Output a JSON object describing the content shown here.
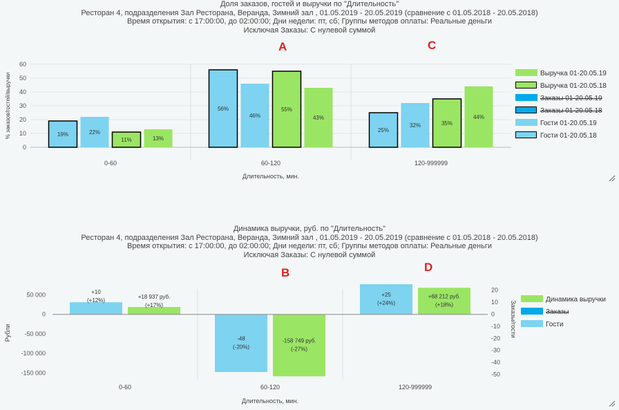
{
  "charts": [
    {
      "title_lines": [
        "Доля заказов, гостей и выручки по \"Длительность\"",
        "Ресторан 4, подразделения Зал Ресторана, Веранда, Зимний зал  , 01.05.2019 - 20.05.2019 (сравнение с 01.05.2018 - 20.05.2018)",
        "Время открытия: с 17:00:00, до 02:00:00; Дни недели: пт,  сб; Группы методов оплаты: Реальные деньги",
        "Исключая Заказы: С нулевой суммой"
      ],
      "marker_labels": [
        "A",
        "C"
      ],
      "legend": [
        {
          "label": "Выручка 01-20.05.19",
          "color": "#9be564",
          "border": "none",
          "struck": false
        },
        {
          "label": "Выручка 01-20.05.18",
          "color": "#9be564",
          "border": "#000000",
          "struck": false
        },
        {
          "label": "Заказы 01-20.05.19",
          "color": "#00aae8",
          "border": "none",
          "struck": true
        },
        {
          "label": "Заказы 01-20.05.18",
          "color": "#00aae8",
          "border": "#000000",
          "struck": true
        },
        {
          "label": "Гости 01-20.05.19",
          "color": "#7dd3f0",
          "border": "none",
          "struck": false
        },
        {
          "label": "Гости 01-20.05.18",
          "color": "#7dd3f0",
          "border": "#000000",
          "struck": false
        }
      ]
    },
    {
      "title_lines": [
        "Динамика выручки, руб. по \"Длительность\"",
        "Ресторан 4, подразделения Зал Ресторана, Веранда, Зимний зал  , 01.05.2019 - 20.05.2019 (сравнение с 01.05.2018 - 20.05.2018)",
        "Время открытия: с 17:00:00, до 02:00:00; Дни недели: пт,  сб; Группы методов оплаты: Реальные деньги",
        "Исключая Заказы: С нулевой суммой"
      ],
      "marker_labels": [
        "B",
        "D"
      ],
      "legend": [
        {
          "label": "Динамика выручки",
          "color": "#9be564",
          "border": "none",
          "struck": false
        },
        {
          "label": "Заказы",
          "color": "#00aae8",
          "border": "none",
          "struck": true
        },
        {
          "label": "Гости",
          "color": "#7dd3f0",
          "border": "none",
          "struck": false
        }
      ]
    }
  ],
  "chart_data": [
    {
      "type": "bar",
      "title": "Доля заказов, гостей и выручки по \"Длительность\"",
      "xlabel": "Длительность, мин.",
      "ylabel": "% заказов/гостей/выручки",
      "ylim": [
        0,
        60
      ],
      "yticks": [
        0,
        10,
        20,
        30,
        40,
        50,
        60
      ],
      "categories": [
        "0-60",
        "60-120",
        "120-999999"
      ],
      "series": [
        {
          "name": "Гости 01-20.05.18",
          "color": "#7dd3f0",
          "border": "#000000",
          "values": [
            19,
            56,
            25
          ],
          "labels": [
            "19%",
            "56%",
            "25%"
          ]
        },
        {
          "name": "Гости 01-20.05.19",
          "color": "#7dd3f0",
          "border": "none",
          "values": [
            22,
            46,
            32
          ],
          "labels": [
            "22%",
            "46%",
            "32%"
          ]
        },
        {
          "name": "Выручка 01-20.05.18",
          "color": "#9be564",
          "border": "#000000",
          "values": [
            11,
            55,
            35
          ],
          "labels": [
            "11%",
            "55%",
            "35%"
          ]
        },
        {
          "name": "Выручка 01-20.05.19",
          "color": "#9be564",
          "border": "none",
          "values": [
            13,
            43,
            44
          ],
          "labels": [
            "13%",
            "43%",
            "44%"
          ]
        }
      ],
      "legend_position": "right"
    },
    {
      "type": "bar",
      "title": "Динамика выручки, руб. по \"Длительность\"",
      "xlabel": "Длительность, мин.",
      "ylabel": "Рубли",
      "ylabel_right": "Заказы/гости",
      "ylim": [
        -160000,
        65000
      ],
      "yticks": [
        50000,
        0,
        -50000,
        -100000,
        -150000
      ],
      "ytick_labels": [
        "50 000",
        "0",
        "-50 000",
        "-100 000",
        "-150 000"
      ],
      "ylim_right": [
        -52,
        21
      ],
      "yticks_right": [
        20,
        10,
        0,
        -10,
        -20,
        -30,
        -40,
        -50
      ],
      "categories": [
        "0-60",
        "60-120",
        "120-999999"
      ],
      "series": [
        {
          "name": "Гости",
          "axis": "right",
          "color": "#7dd3f0",
          "values": [
            10,
            -48,
            25
          ],
          "labels": [
            [
              "+10",
              "(+12%)"
            ],
            [
              "-48",
              "(-20%)"
            ],
            [
              "+25",
              "(+24%)"
            ]
          ]
        },
        {
          "name": "Динамика выручки",
          "axis": "left",
          "color": "#9be564",
          "values": [
            18937,
            -158749,
            68212
          ],
          "labels": [
            [
              "+18 937 руб.",
              "(+17%)"
            ],
            [
              "-158 749 руб.",
              "(-27%)"
            ],
            [
              "+68 212 руб.",
              "(+18%)"
            ]
          ]
        }
      ],
      "legend_position": "right"
    }
  ]
}
